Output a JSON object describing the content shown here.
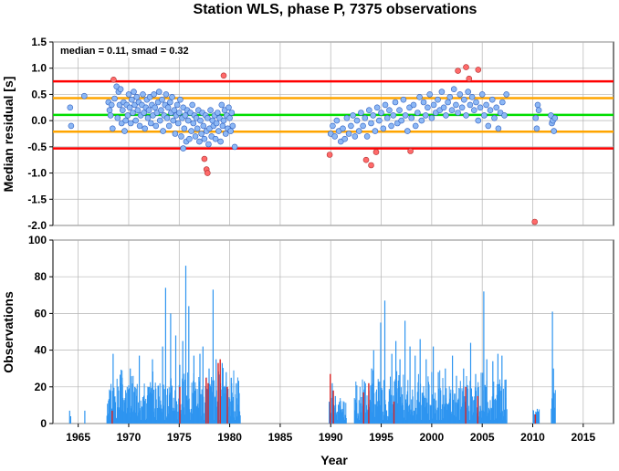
{
  "chart_data": [
    {
      "type": "scatter",
      "title": "Station WLS, phase P, 7375 observations",
      "xlabel": "",
      "ylabel": "Median residual [s]",
      "annotation": "median = 0.11, smad = 0.32",
      "xlim": [
        1962.5,
        2018
      ],
      "ylim": [
        -2.0,
        1.5
      ],
      "yticks": [
        "1.5",
        "1.0",
        "0.5",
        "0.0",
        "-0.5",
        "-1.0",
        "-1.5",
        "-2.0"
      ],
      "grid": true,
      "reference_lines": [
        {
          "kind": "median",
          "y": 0.11,
          "color": "#00dd00"
        },
        {
          "kind": "smad",
          "y": 0.43,
          "color": "#ffa500"
        },
        {
          "kind": "smad",
          "y": -0.21,
          "color": "#ffa500"
        },
        {
          "kind": "limit",
          "y": 0.75,
          "color": "#ff0000"
        },
        {
          "kind": "limit",
          "y": -0.53,
          "color": "#ff0000"
        }
      ],
      "colors": {
        "normal": "#8db8f5",
        "outlier": "#ff6a6a"
      },
      "points": [
        [
          1964.2,
          0.25
        ],
        [
          1964.3,
          -0.1
        ],
        [
          1965.6,
          0.47
        ],
        [
          1968.0,
          0.35
        ],
        [
          1968.1,
          0.2
        ],
        [
          1968.2,
          0.1
        ],
        [
          1968.3,
          0.3
        ],
        [
          1968.4,
          -0.15
        ],
        [
          1968.6,
          0.42
        ],
        [
          1968.8,
          0.65
        ],
        [
          1968.9,
          0.05
        ],
        [
          1969.0,
          0.55
        ],
        [
          1969.1,
          0.3
        ],
        [
          1969.2,
          0.6
        ],
        [
          1969.3,
          -0.05
        ],
        [
          1969.4,
          0.2
        ],
        [
          1969.5,
          0.35
        ],
        [
          1969.6,
          -0.2
        ],
        [
          1969.7,
          0.0
        ],
        [
          1969.8,
          0.3
        ],
        [
          1969.9,
          0.1
        ],
        [
          1970.0,
          0.5
        ],
        [
          1970.1,
          0.25
        ],
        [
          1970.2,
          -0.05
        ],
        [
          1970.3,
          0.4
        ],
        [
          1970.4,
          0.15
        ],
        [
          1970.5,
          0.55
        ],
        [
          1970.6,
          0.3
        ],
        [
          1970.7,
          0.0
        ],
        [
          1970.8,
          0.45
        ],
        [
          1970.9,
          0.2
        ],
        [
          1971.0,
          0.35
        ],
        [
          1971.1,
          -0.1
        ],
        [
          1971.2,
          0.1
        ],
        [
          1971.3,
          0.3
        ],
        [
          1971.4,
          0.5
        ],
        [
          1971.5,
          0.15
        ],
        [
          1971.6,
          -0.15
        ],
        [
          1971.7,
          0.25
        ],
        [
          1971.8,
          0.4
        ],
        [
          1971.9,
          0.05
        ],
        [
          1972.0,
          0.2
        ],
        [
          1972.1,
          0.45
        ],
        [
          1972.2,
          -0.05
        ],
        [
          1972.3,
          0.3
        ],
        [
          1972.4,
          0.1
        ],
        [
          1972.5,
          0.5
        ],
        [
          1972.6,
          0.25
        ],
        [
          1972.7,
          -0.1
        ],
        [
          1972.8,
          0.15
        ],
        [
          1972.9,
          0.35
        ],
        [
          1973.0,
          0.55
        ],
        [
          1973.1,
          0.0
        ],
        [
          1973.2,
          0.2
        ],
        [
          1973.3,
          0.4
        ],
        [
          1973.4,
          -0.2
        ],
        [
          1973.5,
          0.1
        ],
        [
          1973.6,
          0.3
        ],
        [
          1973.7,
          0.5
        ],
        [
          1973.8,
          0.05
        ],
        [
          1973.9,
          0.25
        ],
        [
          1974.0,
          -0.1
        ],
        [
          1974.1,
          0.35
        ],
        [
          1974.2,
          0.15
        ],
        [
          1974.3,
          0.45
        ],
        [
          1974.4,
          0.0
        ],
        [
          1974.5,
          0.2
        ],
        [
          1974.6,
          -0.25
        ],
        [
          1974.7,
          0.1
        ],
        [
          1974.8,
          0.3
        ],
        [
          1974.9,
          -0.05
        ],
        [
          1975.0,
          0.15
        ],
        [
          1975.1,
          0.4
        ],
        [
          1975.2,
          -0.3
        ],
        [
          1975.3,
          0.05
        ],
        [
          1975.4,
          0.25
        ],
        [
          1975.5,
          -0.15
        ],
        [
          1975.6,
          0.1
        ],
        [
          1975.7,
          -0.4
        ],
        [
          1975.8,
          0.2
        ],
        [
          1975.9,
          0.0
        ],
        [
          1976.0,
          -0.35
        ],
        [
          1976.1,
          0.15
        ],
        [
          1976.2,
          -0.2
        ],
        [
          1976.3,
          0.3
        ],
        [
          1976.4,
          -0.05
        ],
        [
          1976.5,
          0.1
        ],
        [
          1976.6,
          -0.3
        ],
        [
          1976.7,
          0.05
        ],
        [
          1976.8,
          -0.15
        ],
        [
          1976.9,
          0.2
        ],
        [
          1977.0,
          -0.4
        ],
        [
          1977.1,
          0.0
        ],
        [
          1977.2,
          -0.25
        ],
        [
          1977.3,
          0.15
        ],
        [
          1977.4,
          -0.1
        ],
        [
          1977.5,
          -0.35
        ],
        [
          1977.6,
          0.1
        ],
        [
          1977.7,
          -0.2
        ],
        [
          1977.8,
          0.05
        ],
        [
          1977.9,
          -0.45
        ],
        [
          1978.0,
          -0.15
        ],
        [
          1978.1,
          0.2
        ],
        [
          1978.2,
          -0.3
        ],
        [
          1978.3,
          0.0
        ],
        [
          1978.4,
          -0.1
        ],
        [
          1978.5,
          0.1
        ],
        [
          1978.6,
          -0.35
        ],
        [
          1978.7,
          -0.05
        ],
        [
          1978.8,
          0.15
        ],
        [
          1978.9,
          -0.2
        ],
        [
          1979.0,
          0.05
        ],
        [
          1979.1,
          -0.4
        ],
        [
          1979.2,
          0.3
        ],
        [
          1979.3,
          -0.1
        ],
        [
          1979.4,
          0.0
        ],
        [
          1979.5,
          0.2
        ],
        [
          1979.6,
          -0.25
        ],
        [
          1979.7,
          0.1
        ],
        [
          1979.8,
          -0.15
        ],
        [
          1979.9,
          0.25
        ],
        [
          1980.0,
          0.05
        ],
        [
          1980.1,
          -0.2
        ],
        [
          1980.2,
          0.15
        ],
        [
          1980.3,
          -0.1
        ],
        [
          1980.5,
          -0.5
        ],
        [
          1968.5,
          0.78
        ],
        [
          1975.4,
          -0.53
        ],
        [
          1977.5,
          -0.73
        ],
        [
          1977.7,
          -0.93
        ],
        [
          1977.8,
          -1.0
        ],
        [
          1979.4,
          0.86
        ],
        [
          1989.9,
          -0.65
        ],
        [
          1990.0,
          -0.25
        ],
        [
          1990.2,
          -0.1
        ],
        [
          1990.4,
          -0.3
        ],
        [
          1990.6,
          0.0
        ],
        [
          1990.8,
          -0.2
        ],
        [
          1991.0,
          -0.4
        ],
        [
          1991.2,
          -0.15
        ],
        [
          1991.4,
          -0.35
        ],
        [
          1991.6,
          0.05
        ],
        [
          1991.8,
          -0.25
        ],
        [
          1992.0,
          -0.1
        ],
        [
          1992.2,
          0.1
        ],
        [
          1992.4,
          -0.3
        ],
        [
          1992.6,
          0.0
        ],
        [
          1992.8,
          -0.2
        ],
        [
          1993.0,
          0.15
        ],
        [
          1993.2,
          -0.1
        ],
        [
          1993.4,
          0.05
        ],
        [
          1993.6,
          -0.3
        ],
        [
          1993.8,
          0.2
        ],
        [
          1994.0,
          -0.05
        ],
        [
          1994.2,
          0.1
        ],
        [
          1994.4,
          -0.2
        ],
        [
          1994.6,
          0.25
        ],
        [
          1994.8,
          0.0
        ],
        [
          1995.0,
          0.15
        ],
        [
          1995.2,
          -0.15
        ],
        [
          1995.4,
          0.3
        ],
        [
          1995.6,
          0.05
        ],
        [
          1995.8,
          0.2
        ],
        [
          1996.0,
          -0.1
        ],
        [
          1996.2,
          0.1
        ],
        [
          1996.4,
          0.35
        ],
        [
          1996.6,
          -0.05
        ],
        [
          1996.8,
          0.2
        ],
        [
          1997.0,
          0.0
        ],
        [
          1997.2,
          0.4
        ],
        [
          1997.4,
          0.1
        ],
        [
          1997.6,
          -0.2
        ],
        [
          1997.8,
          0.25
        ],
        [
          1998.0,
          0.05
        ],
        [
          1998.2,
          0.3
        ],
        [
          1998.4,
          -0.1
        ],
        [
          1998.6,
          0.15
        ],
        [
          1998.8,
          0.45
        ],
        [
          1999.0,
          0.0
        ],
        [
          1999.2,
          0.35
        ],
        [
          1999.4,
          0.1
        ],
        [
          1999.6,
          0.25
        ],
        [
          1999.8,
          0.5
        ],
        [
          2000.0,
          0.05
        ],
        [
          2000.2,
          0.3
        ],
        [
          2000.4,
          0.15
        ],
        [
          2000.6,
          0.4
        ],
        [
          2000.8,
          0.2
        ],
        [
          2001.0,
          0.55
        ],
        [
          2001.2,
          0.25
        ],
        [
          2001.4,
          0.1
        ],
        [
          2001.6,
          0.35
        ],
        [
          2001.8,
          0.45
        ],
        [
          2002.0,
          0.2
        ],
        [
          2002.2,
          0.6
        ],
        [
          2002.4,
          0.3
        ],
        [
          2002.6,
          0.15
        ],
        [
          2002.8,
          0.5
        ],
        [
          2003.0,
          0.25
        ],
        [
          2003.2,
          0.4
        ],
        [
          2003.4,
          0.1
        ],
        [
          2003.6,
          0.55
        ],
        [
          2003.8,
          0.3
        ],
        [
          2004.0,
          0.45
        ],
        [
          2004.2,
          0.2
        ],
        [
          2004.4,
          0.35
        ],
        [
          2004.6,
          0.0
        ],
        [
          2004.8,
          0.25
        ],
        [
          2005.0,
          0.5
        ],
        [
          2005.2,
          0.1
        ],
        [
          2005.4,
          0.3
        ],
        [
          2005.6,
          -0.1
        ],
        [
          2005.8,
          0.2
        ],
        [
          2006.0,
          0.4
        ],
        [
          2006.2,
          0.05
        ],
        [
          2006.4,
          0.25
        ],
        [
          2006.6,
          -0.15
        ],
        [
          2006.8,
          0.15
        ],
        [
          2007.0,
          0.35
        ],
        [
          2007.2,
          0.1
        ],
        [
          2007.4,
          0.5
        ],
        [
          1993.5,
          -0.75
        ],
        [
          1994.0,
          -0.85
        ],
        [
          1994.5,
          -0.6
        ],
        [
          1997.9,
          -0.58
        ],
        [
          2002.6,
          0.95
        ],
        [
          2003.4,
          1.02
        ],
        [
          2003.7,
          0.8
        ],
        [
          2004.6,
          0.97
        ],
        [
          2010.3,
          0.05
        ],
        [
          2010.4,
          -0.15
        ],
        [
          2010.5,
          0.3
        ],
        [
          2010.6,
          0.2
        ],
        [
          2011.8,
          0.1
        ],
        [
          2011.9,
          -0.05
        ],
        [
          2012.0,
          0.0
        ],
        [
          2012.1,
          -0.2
        ],
        [
          2012.2,
          0.05
        ],
        [
          2010.2,
          -1.93
        ]
      ]
    },
    {
      "type": "bar",
      "title": "",
      "xlabel": "Year",
      "ylabel": "Observations",
      "xlim": [
        1962.5,
        2018
      ],
      "ylim": [
        0,
        100
      ],
      "xticks": [
        "1965",
        "1970",
        "1975",
        "1980",
        "1985",
        "1990",
        "1995",
        "2000",
        "2005",
        "2010",
        "2015"
      ],
      "yticks": [
        "0",
        "20",
        "40",
        "60",
        "80",
        "100"
      ],
      "grid": true,
      "colors": {
        "bar": "#2e95f0",
        "highlight": "#dd2222"
      },
      "segments": [
        {
          "start": 1967.8,
          "end": 1981.0,
          "base": 14,
          "amp": 12,
          "seed": 3
        },
        {
          "start": 1992.3,
          "end": 2007.4,
          "base": 13,
          "amp": 12,
          "seed": 7
        },
        {
          "start": 1989.8,
          "end": 1991.5,
          "base": 8,
          "amp": 6,
          "seed": 11
        },
        {
          "start": 2010.0,
          "end": 2010.6,
          "base": 5,
          "amp": 3,
          "seed": 5
        },
        {
          "start": 2011.8,
          "end": 2012.2,
          "base": 12,
          "amp": 6,
          "seed": 9
        }
      ],
      "bars": [
        [
          1964.1,
          7
        ],
        [
          1964.2,
          4
        ],
        [
          1965.6,
          7
        ],
        [
          1968.1,
          17
        ],
        [
          1968.4,
          38
        ],
        [
          1969.3,
          25
        ],
        [
          1970.1,
          30
        ],
        [
          1971.0,
          37
        ],
        [
          1972.3,
          35
        ],
        [
          1973.3,
          42
        ],
        [
          1973.6,
          74
        ],
        [
          1974.1,
          60
        ],
        [
          1974.6,
          48
        ],
        [
          1975.0,
          32
        ],
        [
          1975.3,
          45
        ],
        [
          1975.6,
          86
        ],
        [
          1975.9,
          64
        ],
        [
          1976.4,
          37
        ],
        [
          1977.0,
          38
        ],
        [
          1977.3,
          42
        ],
        [
          1977.9,
          30
        ],
        [
          1978.3,
          73
        ],
        [
          1978.6,
          35
        ],
        [
          1979.2,
          33
        ],
        [
          1979.6,
          28
        ],
        [
          1980.1,
          25
        ],
        [
          1980.6,
          22
        ],
        [
          1990.1,
          22
        ],
        [
          1990.4,
          15
        ],
        [
          1993.3,
          23
        ],
        [
          1994.0,
          30
        ],
        [
          1994.2,
          40
        ],
        [
          1994.9,
          55
        ],
        [
          1995.3,
          67
        ],
        [
          1996.0,
          38
        ],
        [
          1996.4,
          45
        ],
        [
          1996.8,
          35
        ],
        [
          1997.3,
          56
        ],
        [
          1997.8,
          42
        ],
        [
          1998.3,
          37
        ],
        [
          1998.8,
          46
        ],
        [
          1999.4,
          35
        ],
        [
          2000.1,
          42
        ],
        [
          2000.6,
          28
        ],
        [
          2001.3,
          30
        ],
        [
          2002.0,
          37
        ],
        [
          2002.4,
          26
        ],
        [
          2003.1,
          30
        ],
        [
          2003.8,
          44
        ],
        [
          2004.3,
          27
        ],
        [
          2005.1,
          72
        ],
        [
          2005.4,
          35
        ],
        [
          2006.0,
          34
        ],
        [
          2006.5,
          38
        ],
        [
          2006.9,
          37
        ],
        [
          2007.3,
          24
        ],
        [
          2010.1,
          5
        ],
        [
          2010.4,
          8
        ],
        [
          2011.9,
          61
        ],
        [
          2012.0,
          30
        ]
      ],
      "highlights": [
        [
          1968.3,
          7
        ],
        [
          1975.0,
          20
        ],
        [
          1977.6,
          25
        ],
        [
          1977.8,
          22
        ],
        [
          1978.8,
          33
        ],
        [
          1979.0,
          35
        ],
        [
          1979.7,
          20
        ],
        [
          1989.9,
          27
        ],
        [
          1990.2,
          18
        ],
        [
          1993.2,
          17
        ],
        [
          1993.7,
          22
        ],
        [
          1996.2,
          12
        ],
        [
          2003.3,
          20
        ],
        [
          2004.5,
          15
        ],
        [
          2010.2,
          5
        ]
      ]
    }
  ]
}
